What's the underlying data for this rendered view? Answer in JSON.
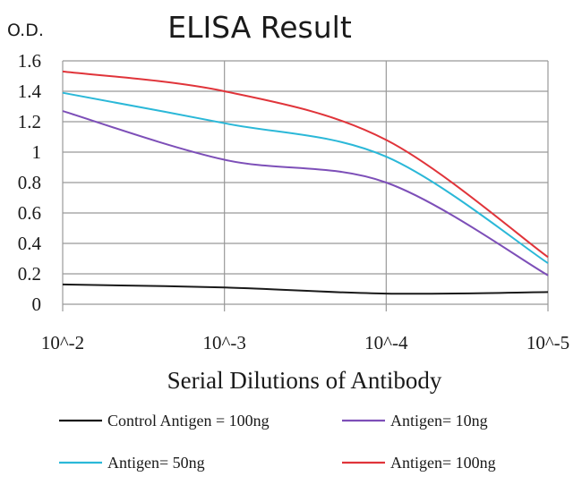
{
  "chart_data": {
    "type": "line",
    "title": "ELISA Result",
    "ylabel": "O.D.",
    "xlabel": "Serial Dilutions of Antibody",
    "categories": [
      "10^-2",
      "10^-3",
      "10^-4",
      "10^-5"
    ],
    "ylim": [
      0,
      1.6
    ],
    "yticks": [
      "0",
      "0.2",
      "0.4",
      "0.6",
      "0.8",
      "1",
      "1.2",
      "1.4",
      "1.6"
    ],
    "grid": true,
    "legend_position": "bottom",
    "series": [
      {
        "name": "Control Antigen = 100ng",
        "color": "#1a1a1a",
        "values": [
          0.13,
          0.11,
          0.07,
          0.08
        ]
      },
      {
        "name": "Antigen= 10ng",
        "color": "#7d4fb8",
        "values": [
          1.27,
          0.95,
          0.8,
          0.19
        ]
      },
      {
        "name": "Antigen= 50ng",
        "color": "#2bb8d8",
        "values": [
          1.39,
          1.19,
          0.97,
          0.27
        ]
      },
      {
        "name": "Antigen= 100ng",
        "color": "#e0343a",
        "values": [
          1.53,
          1.4,
          1.08,
          0.31
        ]
      }
    ]
  }
}
